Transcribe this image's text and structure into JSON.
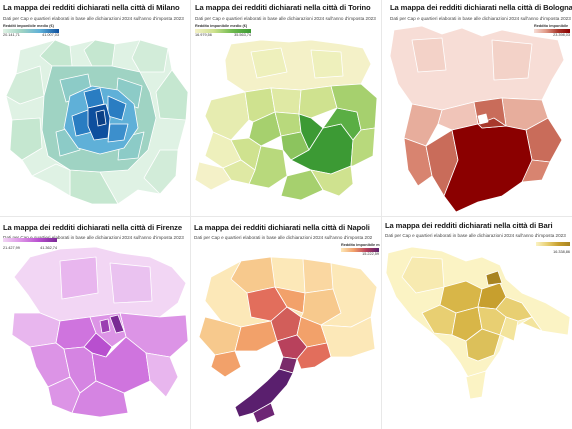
{
  "panels": [
    {
      "id": "milano",
      "title": "La mappa dei redditi dichiarati nella città di Milano",
      "subtitle": "Dati per Cap e quartieri elaborati in base alle dichiarazioni 2024 sull'anno d'imposta 2023",
      "legend_title": "Redditi imponibile medio (€)",
      "legend_min": "20.141,71",
      "legend_max": "41.007,03",
      "colors": [
        "#dff2e4",
        "#c5e7d0",
        "#9fd3c3",
        "#5fb0d8",
        "#2a7dc2",
        "#0e4f9e"
      ]
    },
    {
      "id": "torino",
      "title": "La mappa dei redditi dichiarati nella città di Torino",
      "subtitle": "Dati per Cap e quartieri elaborati in base alle dichiarazioni 2024 sull'anno d'imposta 2023",
      "legend_title": "Reddito imponibile medio (€)",
      "legend_min": "16.979,56",
      "legend_max": "35.563,74",
      "colors": [
        "#f4f1c8",
        "#e6ecb0",
        "#cfe28f",
        "#a6d06e",
        "#6fba4f",
        "#3c9a34"
      ]
    },
    {
      "id": "bologna",
      "title": "La mappa dei redditi dichiarati nella città di Bologna",
      "subtitle": "Dati per Cap e quartieri elaborati in base alle dichiarazioni 2024 sull'anno d'imposta 2023",
      "legend_title": "Reddito imponibile",
      "legend_min": "",
      "legend_max": "23.398,03",
      "colors": [
        "#f7ddd6",
        "#f0c4b8",
        "#e09a88",
        "#c96c5a",
        "#a8382c",
        "#8b0000"
      ]
    },
    {
      "id": "firenze",
      "title": "La mappa dei redditi dichiarati nella città di Firenze",
      "subtitle": "Dati per Cap e quartieri elaborati in base alle dichiarazioni 2024 sull'anno d'imposta 2023",
      "legend_title": "",
      "legend_min": "21.427,99",
      "legend_max": "41.362,74",
      "colors": [
        "#f2d6f4",
        "#e8b6ee",
        "#dc94e6",
        "#cf74de",
        "#b84fcf",
        "#7a2a94"
      ]
    },
    {
      "id": "napoli",
      "title": "La mappa dei redditi dichiarati nella città di Napoli",
      "subtitle": "Dati per Cap e quartieri elaborati in base alle dichiarazioni 2024 sull'anno d'imposta 202",
      "legend_title": "Reddito imponibile m",
      "legend_min": "",
      "legend_max": "15.222,59",
      "colors": [
        "#fce8b8",
        "#f7c98d",
        "#f2a16a",
        "#e26e5c",
        "#b8415c",
        "#5a1f6e"
      ]
    },
    {
      "id": "bari",
      "title": "La mappa dei redditi dichiarati nella città di Bari",
      "subtitle": "Dati per Cap e quartieri elaborati in base alle dichiarazioni 2024 sull'anno d'imposta 2023",
      "legend_title": "",
      "legend_min": "",
      "legend_max": "16.338,86",
      "colors": [
        "#fbf3c4",
        "#f3e49c",
        "#e8cf72",
        "#d8b648",
        "#c79f2e",
        "#a88422"
      ]
    }
  ]
}
